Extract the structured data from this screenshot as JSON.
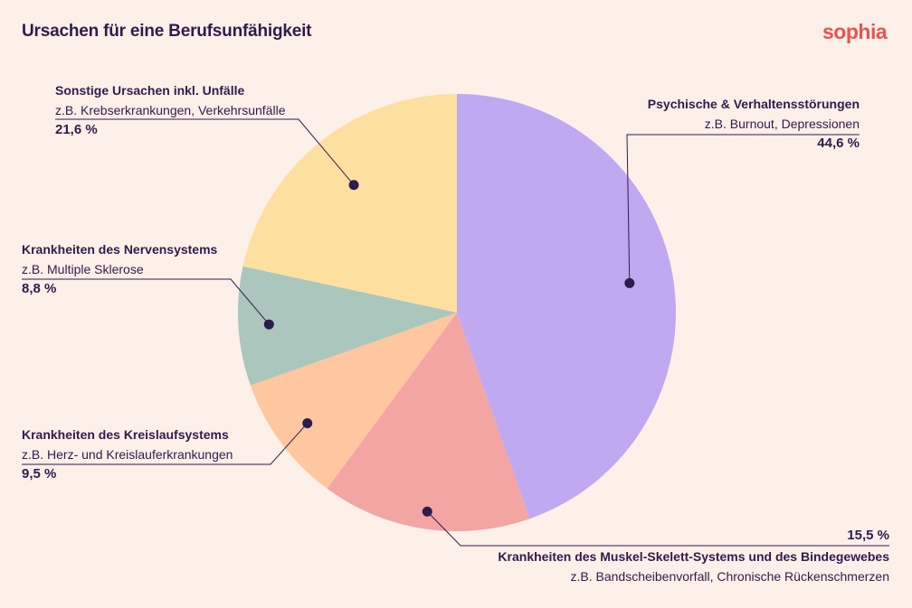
{
  "header": {
    "title": "Ursachen für eine Berufsunfähigkeit",
    "logo": "sophia"
  },
  "chart_data": {
    "type": "pie",
    "title": "Ursachen für eine Berufsunfähigkeit",
    "slices": [
      {
        "name": "Psychische & Verhaltensstörungen",
        "example": "z.B. Burnout, Depressionen",
        "value": 44.6,
        "value_label": "44,6 %",
        "color": "#bfa9f0"
      },
      {
        "name": "Krankheiten des Muskel-Skelett-Systems und des Bindegewebes",
        "example": "z.B. Bandscheibenvorfall, Chronische Rückenschmerzen",
        "value": 15.5,
        "value_label": "15,5 %",
        "color": "#f3a5a3"
      },
      {
        "name": "Krankheiten des Kreislaufsystems",
        "example": "z.B. Herz- und Kreislauferkrankungen",
        "value": 9.5,
        "value_label": "9,5 %",
        "color": "#fec7a0"
      },
      {
        "name": "Krankheiten des Nervensystems",
        "example": "z.B. Multiple Sklerose",
        "value": 8.8,
        "value_label": "8,8 %",
        "color": "#aac6bd"
      },
      {
        "name": "Sonstige Ursachen inkl. Unfälle",
        "example": "z.B. Krebserkrankungen, Verkehrsunfälle",
        "value": 21.6,
        "value_label": "21,6 %",
        "color": "#fde0a0"
      }
    ],
    "start_position": "12 o'clock, clockwise",
    "legend": "callout labels"
  },
  "colors": {
    "background": "#fdf0e9",
    "text": "#2c1d4d",
    "logo": "#e8534f"
  }
}
